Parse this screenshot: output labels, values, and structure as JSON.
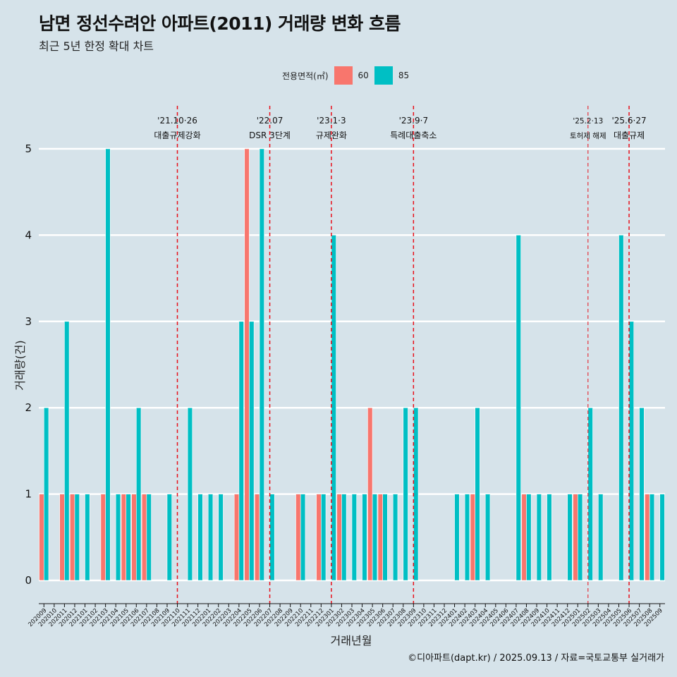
{
  "title": "남면 정선수려안 아파트(2011) 거래량 변화 흐름",
  "subtitle": "최근 5년 한정 확대 차트",
  "caption": "©디아파트(dapt.kr) / 2025.09.13 / 자료=국토교통부 실거래가",
  "legend": {
    "title": "전용면적(㎡)",
    "items": [
      {
        "label": "60",
        "color": "#f8766d"
      },
      {
        "label": "85",
        "color": "#00bfc4"
      }
    ]
  },
  "chart_data": {
    "type": "bar",
    "xlabel": "거래년월",
    "ylabel": "거래량(건)",
    "ylim": [
      0,
      5
    ],
    "yticks": [
      0,
      1,
      2,
      3,
      4,
      5
    ],
    "grid": true,
    "legend_position": "top",
    "categories": [
      "202009",
      "202010",
      "202011",
      "202012",
      "202101",
      "202102",
      "202103",
      "202104",
      "202105",
      "202106",
      "202107",
      "202108",
      "202109",
      "202110",
      "202111",
      "202112",
      "202201",
      "202202",
      "202203",
      "202204",
      "202205",
      "202206",
      "202207",
      "202208",
      "202209",
      "202210",
      "202211",
      "202212",
      "202301",
      "202302",
      "202303",
      "202304",
      "202305",
      "202306",
      "202307",
      "202308",
      "202309",
      "202310",
      "202311",
      "202312",
      "202401",
      "202402",
      "202403",
      "202404",
      "202405",
      "202406",
      "202407",
      "202408",
      "202409",
      "202410",
      "202411",
      "202412",
      "202501",
      "202502",
      "202503",
      "202504",
      "202505",
      "202506",
      "202507",
      "202508",
      "202509"
    ],
    "series": [
      {
        "name": "60",
        "color": "#f8766d",
        "values": [
          1,
          0,
          1,
          1,
          0,
          0,
          1,
          0,
          1,
          1,
          1,
          0,
          0,
          0,
          0,
          0,
          0,
          0,
          0,
          1,
          5,
          1,
          0,
          0,
          0,
          1,
          0,
          1,
          0,
          1,
          0,
          0,
          2,
          1,
          0,
          0,
          0,
          0,
          0,
          0,
          0,
          0,
          1,
          0,
          0,
          0,
          0,
          1,
          0,
          0,
          0,
          0,
          1,
          0,
          0,
          0,
          0,
          0,
          0,
          1,
          0
        ]
      },
      {
        "name": "85",
        "color": "#00bfc4",
        "values": [
          2,
          0,
          3,
          1,
          1,
          0,
          5,
          1,
          1,
          2,
          1,
          0,
          1,
          0,
          2,
          1,
          1,
          1,
          0,
          3,
          3,
          5,
          1,
          0,
          0,
          1,
          0,
          1,
          4,
          1,
          1,
          1,
          1,
          1,
          1,
          2,
          2,
          0,
          0,
          0,
          1,
          1,
          2,
          1,
          0,
          0,
          4,
          1,
          1,
          1,
          0,
          1,
          1,
          2,
          1,
          0,
          4,
          3,
          2,
          1,
          1
        ]
      }
    ],
    "events": [
      {
        "date": "'21.10·26",
        "label": "대출규제강화",
        "x": "202110"
      },
      {
        "date": "'22.07",
        "label": "DSR 3단계",
        "x": "202207"
      },
      {
        "date": "'23.1·3",
        "label": "규제완화",
        "x": "202301"
      },
      {
        "date": "'23.9·7",
        "label": "특례대출축소",
        "x": "202309"
      },
      {
        "date": "'25.2·13",
        "label": "토허제 해제",
        "x": "202502"
      },
      {
        "date": "'25.6·27",
        "label": "대출규제",
        "x": "202506"
      }
    ]
  }
}
